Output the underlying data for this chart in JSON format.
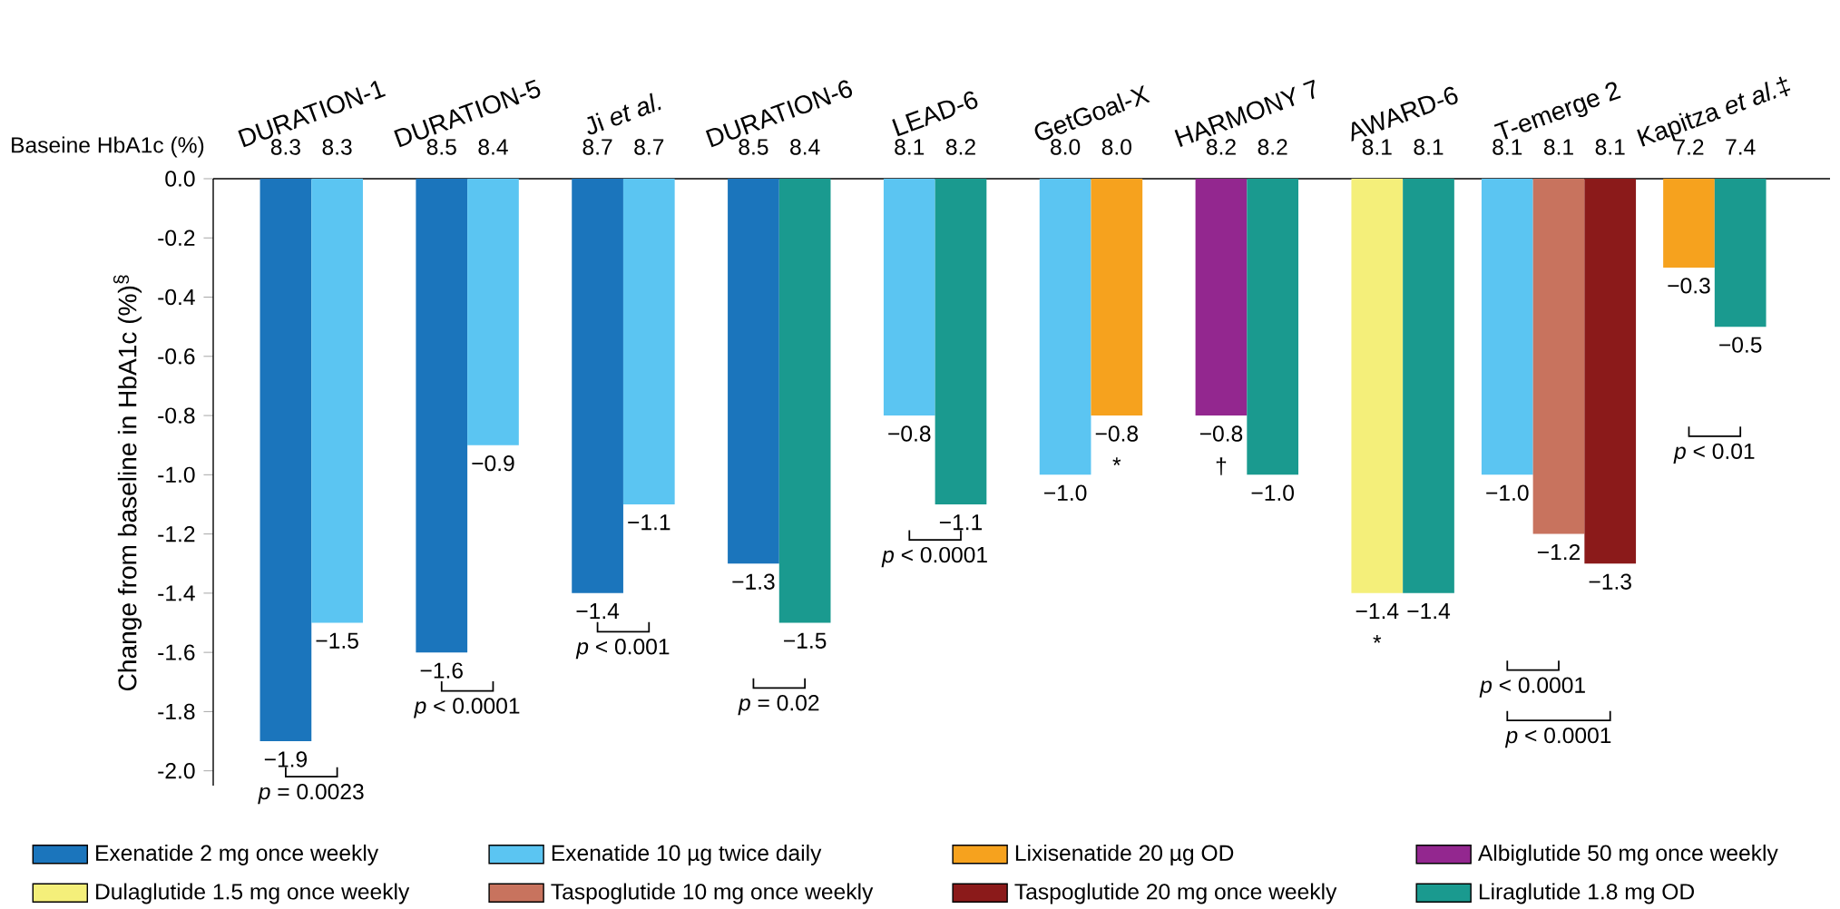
{
  "chart_data": {
    "type": "bar",
    "categories": [
      "DURATION-1",
      "DURATION-5",
      "Ji *et al.*",
      "DURATION-6",
      "LEAD-6",
      "GetGoal-X",
      "HARMONY 7",
      "AWARD-6",
      "T-emerge 2",
      "Kapitza *et al.*‡"
    ],
    "ylabel": "Change from baseline in HbA1c (%)$^{§}$",
    "ylim": [
      -2.05,
      0
    ],
    "yticks": [
      {
        "value": -2.0,
        "label": "-2.0"
      },
      {
        "value": -1.8,
        "label": "-1.8"
      },
      {
        "value": -1.6,
        "label": "-1.6"
      },
      {
        "value": -1.4,
        "label": "-1.4"
      },
      {
        "value": -1.2,
        "label": "-1.2"
      },
      {
        "value": -1.0,
        "label": "-1.0"
      },
      {
        "value": -0.8,
        "label": "-0.8"
      },
      {
        "value": -0.6,
        "label": "-0.6"
      },
      {
        "value": -0.4,
        "label": "-0.4"
      },
      {
        "value": -0.2,
        "label": "-0.2"
      },
      {
        "value": 0,
        "label": "0.0"
      }
    ],
    "legend": "bottom",
    "series": [
      {
        "name": "Exenatide 2 mg once weekly",
        "color": "#1b75bc",
        "values": [
          -1.9,
          -1.6,
          -1.4,
          -1.3,
          null,
          null,
          null,
          null,
          null,
          null
        ],
        "value_labels": [
          "−1.9",
          "−1.6",
          "−1.4",
          "−1.3",
          null,
          null,
          null,
          null,
          null,
          null
        ]
      },
      {
        "name": "Exenatide 10 µg twice daily",
        "color": "#5bc5f2",
        "values": [
          -1.5,
          -0.9,
          -1.1,
          null,
          -0.8,
          -1.0,
          null,
          null,
          -1.0,
          null
        ],
        "value_labels": [
          "−1.5",
          "−0.9",
          "−1.1",
          null,
          "−0.8",
          "−1.0",
          null,
          null,
          "−1.0",
          null
        ]
      },
      {
        "name": "Lixisenatide 20 µg OD",
        "color": "#f6a21e",
        "values": [
          null,
          null,
          null,
          null,
          null,
          -0.8,
          null,
          null,
          null,
          -0.3
        ],
        "value_labels": [
          null,
          null,
          null,
          null,
          null,
          "−0.8",
          null,
          null,
          null,
          "−0.3"
        ]
      },
      {
        "name": "Albiglutide 50 mg once weekly",
        "color": "#93278f",
        "values": [
          null,
          null,
          null,
          null,
          null,
          null,
          -0.8,
          null,
          null,
          null
        ],
        "value_labels": [
          null,
          null,
          null,
          null,
          null,
          null,
          "−0.8",
          null,
          null,
          null
        ]
      },
      {
        "name": "Dulaglutide 1.5 mg once weekly",
        "color": "#f4ef7a",
        "values": [
          null,
          null,
          null,
          null,
          null,
          null,
          null,
          -1.4,
          null,
          null
        ],
        "value_labels": [
          null,
          null,
          null,
          null,
          null,
          null,
          null,
          "−1.4",
          null,
          null
        ]
      },
      {
        "name": "Taspoglutide 10 mg once weekly",
        "color": "#c8735e",
        "values": [
          null,
          null,
          null,
          null,
          null,
          null,
          null,
          null,
          -1.2,
          null
        ],
        "value_labels": [
          null,
          null,
          null,
          null,
          null,
          null,
          null,
          null,
          "−1.2",
          null
        ]
      },
      {
        "name": "Taspoglutide 20 mg once weekly",
        "color": "#8b1a1a",
        "values": [
          null,
          null,
          null,
          null,
          null,
          null,
          null,
          null,
          -1.3,
          null
        ],
        "value_labels": [
          null,
          null,
          null,
          null,
          null,
          null,
          null,
          null,
          "−1.3",
          null
        ]
      },
      {
        "name": "Liraglutide 1.8 mg OD",
        "color": "#1a9a8f",
        "values": [
          null,
          null,
          null,
          -1.5,
          -1.1,
          null,
          -1.0,
          -1.4,
          null,
          -0.5
        ],
        "value_labels": [
          null,
          null,
          null,
          "−1.5",
          "−1.1",
          null,
          "−1.0",
          "−1.4",
          null,
          "−0.5"
        ]
      }
    ],
    "annotations": [
      "Baseine HbA1c (%)",
      "8.3",
      "8.3",
      "8.5",
      "8.4",
      "8.7",
      "8.7",
      "8.5",
      "8.4",
      "8.1",
      "8.2",
      "8.0",
      "8.0",
      "8.2",
      "8.2",
      "8.1",
      "8.1",
      "8.1",
      "8.1",
      "8.1",
      "7.2",
      "7.4",
      "*p* = 0.0023",
      "*p* < 0.0001",
      "*p* < 0.001",
      "*p* = 0.02",
      "*p* < 0.0001",
      "*p* < 0.0001",
      "*p* < 0.0001",
      "*p* < 0.01",
      "*",
      "†",
      "*"
    ]
  }
}
